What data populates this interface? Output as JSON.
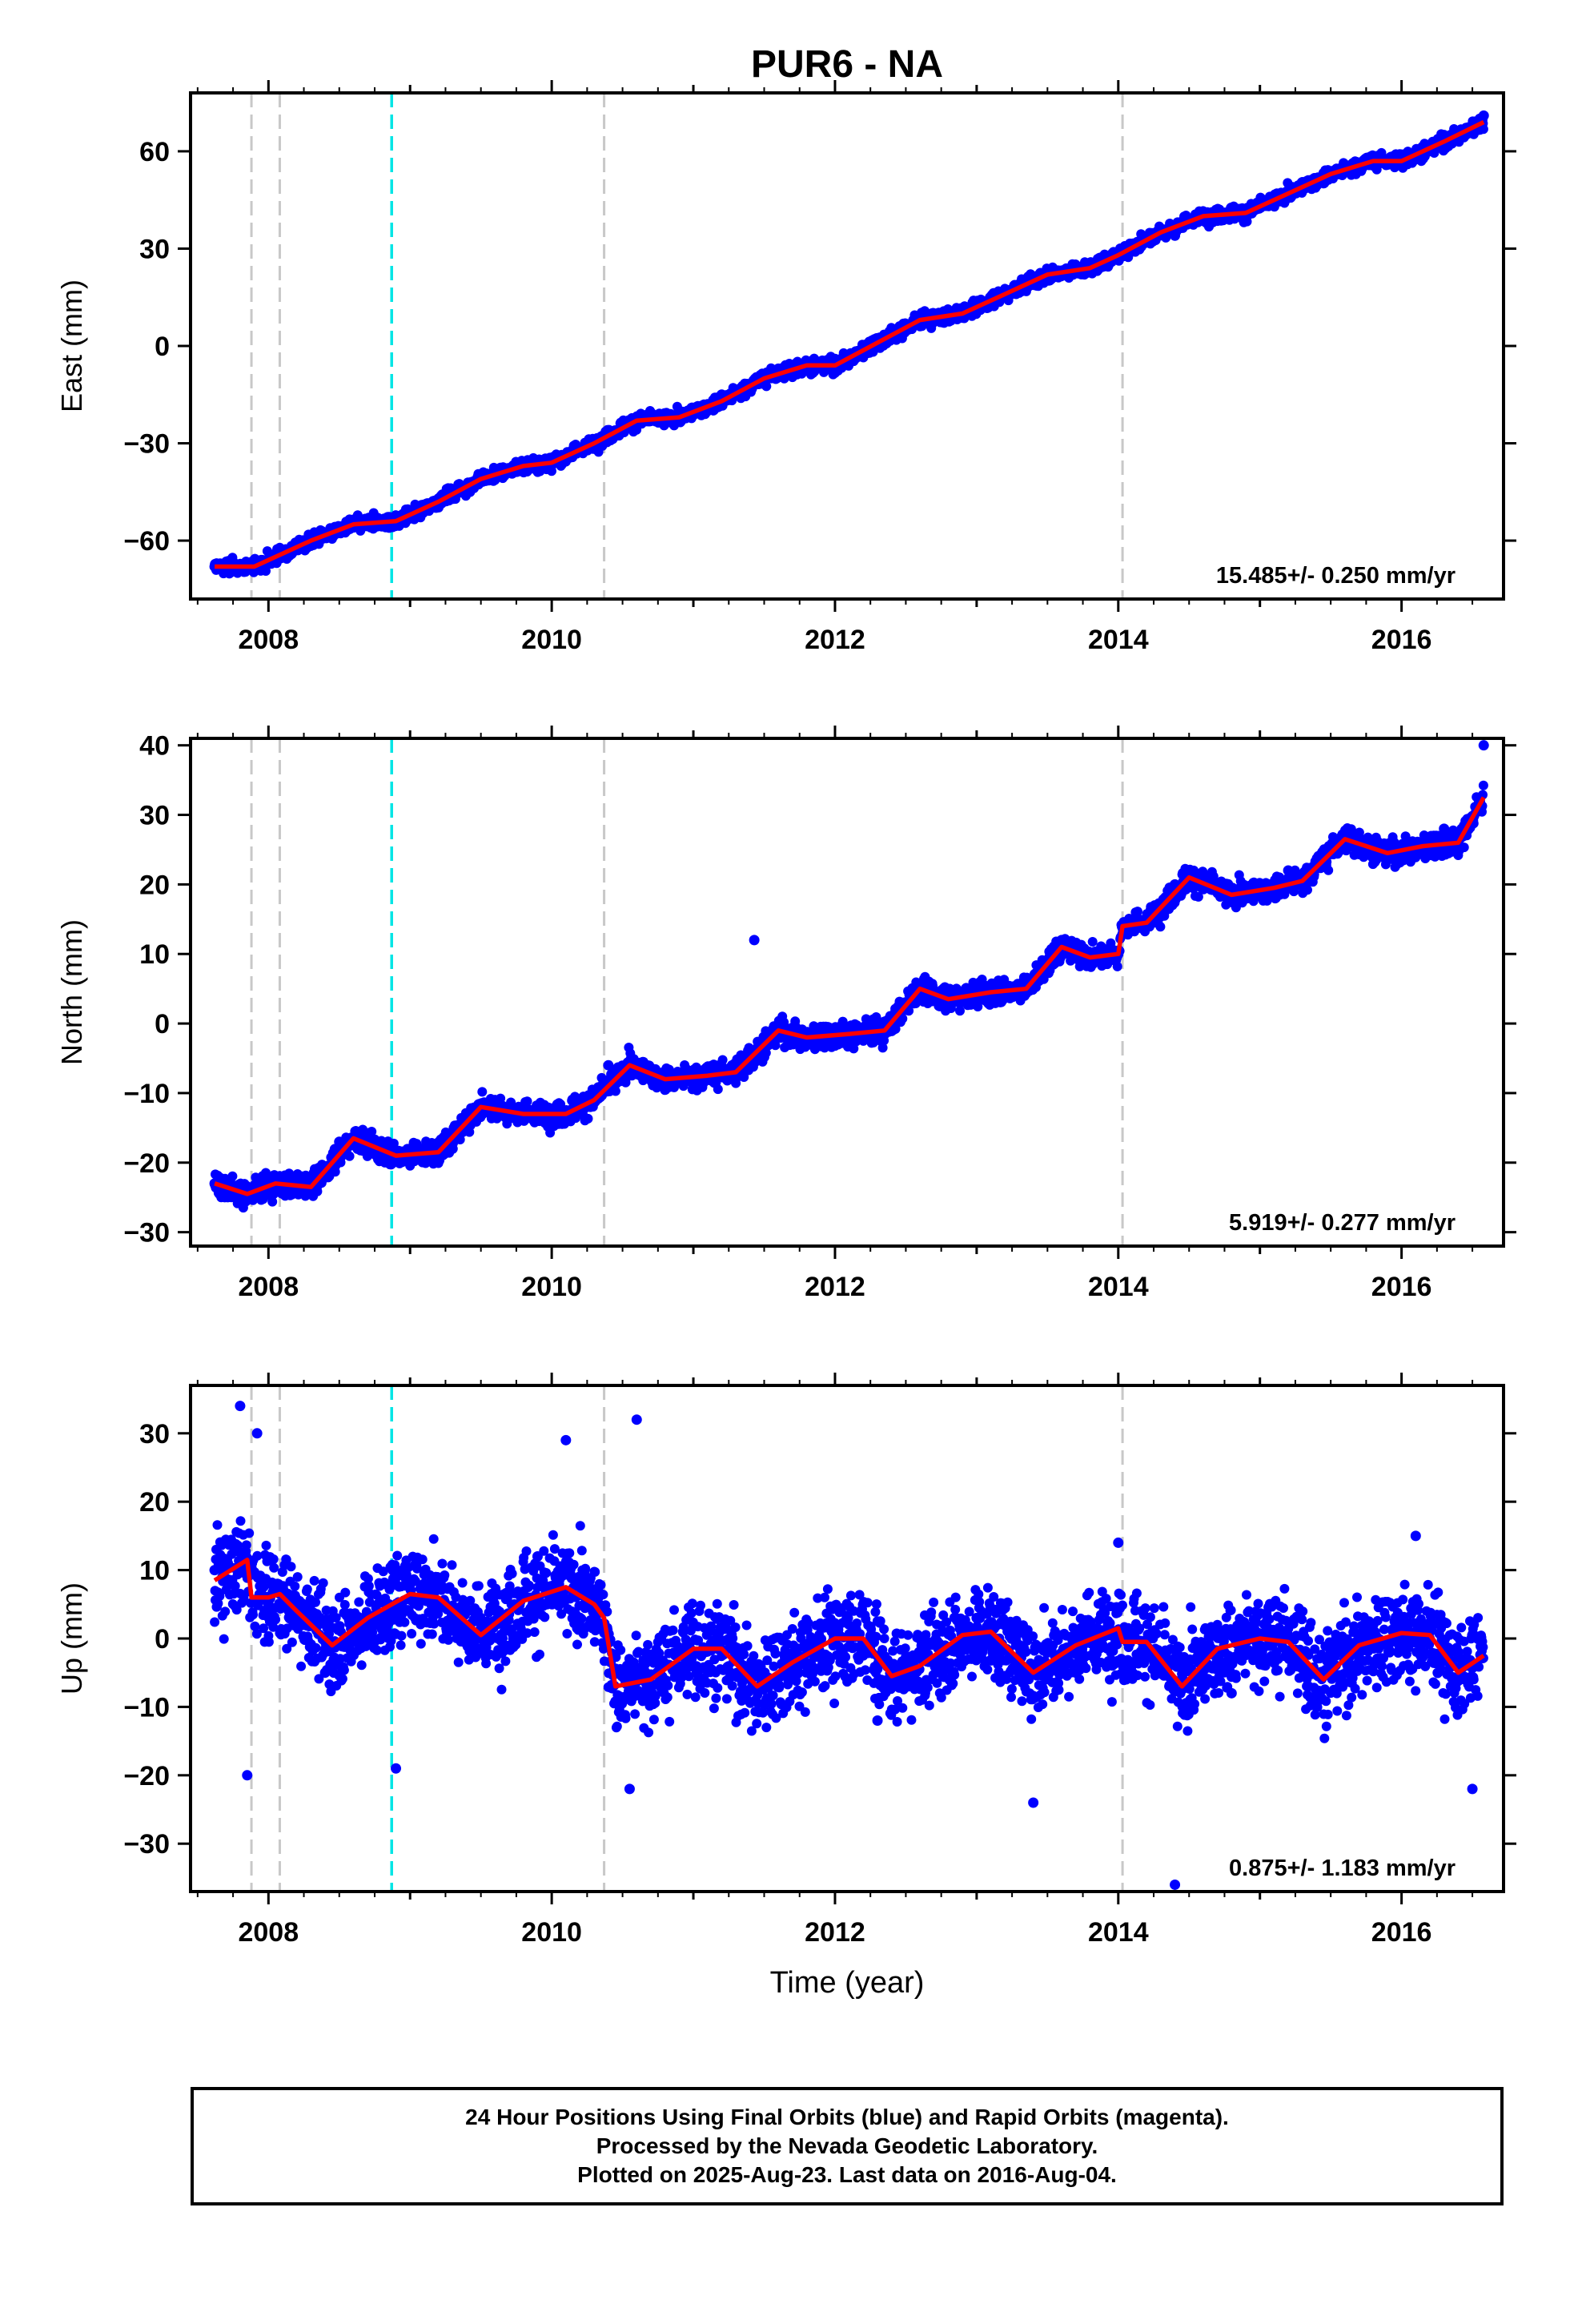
{
  "title": "PUR6 - NA",
  "x_axis_label": "Time (year)",
  "footer": {
    "line1": "24 Hour Positions Using Final Orbits (blue) and Rapid Orbits (magenta).",
    "line2": "Processed by the Nevada Geodetic Laboratory.",
    "line3": "Plotted on 2025-Aug-23. Last data on 2016-Aug-04."
  },
  "colors": {
    "final_orbits": "#0000ff",
    "model": "#ff0000",
    "equipment_change": "#c8c8c8",
    "event_line": "#00e5e5",
    "axes": "#000000"
  },
  "chart_data": [
    {
      "type": "scatter",
      "component": "east",
      "ylabel": "East (mm)",
      "ylim": [
        -78,
        78
      ],
      "yticks": [
        -60,
        -30,
        0,
        30,
        60
      ],
      "xlim": [
        2007.45,
        2016.72
      ],
      "xticks": [
        2008,
        2010,
        2012,
        2014,
        2016
      ],
      "rate_label": "15.485+/- 0.250 mm/yr",
      "grid": false,
      "vlines_gray": [
        2007.88,
        2008.08,
        2010.37,
        2014.03
      ],
      "vlines_cyan": [
        2008.87
      ],
      "series": [
        {
          "role": "daily positions",
          "x": [
            2007.62,
            2007.9,
            2008.2,
            2008.5,
            2008.9,
            2009.3,
            2009.7,
            2010.0,
            2010.4,
            2010.8,
            2011.2,
            2011.6,
            2012.0,
            2012.4,
            2012.8,
            2013.2,
            2013.6,
            2014.0,
            2014.4,
            2014.8,
            2015.2,
            2015.6,
            2016.0,
            2016.3,
            2016.58
          ],
          "y": [
            -68,
            -66,
            -62,
            -56,
            -53,
            -45,
            -39,
            -35,
            -26,
            -21,
            -15,
            -7,
            -4,
            3,
            10,
            15,
            23,
            27,
            34,
            40,
            47,
            55,
            59,
            65,
            71
          ]
        },
        {
          "role": "model fit",
          "x": [
            2007.62,
            2007.9,
            2008.0,
            2008.3,
            2008.6,
            2008.9,
            2009.2,
            2009.5,
            2009.8,
            2010.0,
            2010.3,
            2010.6,
            2010.9,
            2011.2,
            2011.5,
            2011.8,
            2012.0,
            2012.3,
            2012.6,
            2012.9,
            2013.2,
            2013.5,
            2013.8,
            2014.0,
            2014.3,
            2014.6,
            2014.9,
            2015.2,
            2015.5,
            2015.8,
            2016.0,
            2016.3,
            2016.58
          ],
          "y": [
            -68,
            -68,
            -66,
            -60,
            -55,
            -54,
            -48,
            -41,
            -37,
            -36,
            -30,
            -23,
            -22,
            -17,
            -10,
            -6,
            -6,
            1,
            8,
            10,
            16,
            22,
            24,
            28,
            35,
            40,
            41,
            47,
            53,
            57,
            57,
            63,
            69
          ]
        }
      ]
    },
    {
      "type": "scatter",
      "component": "north",
      "ylabel": "North (mm)",
      "ylim": [
        -32,
        41
      ],
      "yticks": [
        -30,
        -20,
        -10,
        0,
        10,
        20,
        30,
        40
      ],
      "xlim": [
        2007.45,
        2016.72
      ],
      "xticks": [
        2008,
        2010,
        2012,
        2014,
        2016
      ],
      "rate_label": "5.919+/- 0.277 mm/yr",
      "grid": false,
      "vlines_gray": [
        2007.88,
        2008.08,
        2010.37,
        2014.03
      ],
      "vlines_cyan": [
        2008.87
      ],
      "series": [
        {
          "role": "daily positions",
          "x": [
            2007.62,
            2007.9,
            2008.2,
            2008.5,
            2008.9,
            2009.3,
            2009.6,
            2010.0,
            2010.4,
            2010.8,
            2011.2,
            2011.43,
            2011.6,
            2012.0,
            2012.4,
            2012.8,
            2013.2,
            2013.6,
            2014.0,
            2014.4,
            2014.8,
            2015.2,
            2015.6,
            2016.0,
            2016.3,
            2016.58
          ],
          "y": [
            -23,
            -24,
            -24,
            -17,
            -19,
            -18,
            -11,
            -13,
            -6,
            -9,
            -7,
            12,
            -1,
            -2,
            0,
            4,
            5,
            12,
            10,
            20,
            19,
            22,
            26,
            25,
            28,
            40
          ]
        },
        {
          "role": "model fit",
          "x": [
            2007.62,
            2007.85,
            2008.05,
            2008.3,
            2008.6,
            2008.9,
            2009.2,
            2009.5,
            2009.8,
            2010.1,
            2010.3,
            2010.55,
            2010.8,
            2011.1,
            2011.3,
            2011.6,
            2011.8,
            2012.1,
            2012.35,
            2012.6,
            2012.8,
            2013.1,
            2013.35,
            2013.6,
            2013.8,
            2014.0,
            2014.03,
            2014.2,
            2014.5,
            2014.8,
            2015.1,
            2015.3,
            2015.6,
            2015.9,
            2016.15,
            2016.4,
            2016.58
          ],
          "y": [
            -23,
            -24.5,
            -23,
            -23.5,
            -16.5,
            -19,
            -18.5,
            -12,
            -13,
            -13,
            -11,
            -6,
            -8,
            -7.5,
            -7,
            -1,
            -2,
            -1.5,
            -1,
            5,
            3.5,
            4.5,
            5,
            11,
            9.5,
            10,
            14,
            14.5,
            21,
            18.5,
            19.5,
            20.5,
            26.5,
            24.5,
            25.5,
            26,
            32.5
          ]
        }
      ]
    },
    {
      "type": "scatter",
      "component": "up",
      "ylabel": "Up (mm)",
      "ylim": [
        -37,
        37
      ],
      "yticks": [
        -30,
        -20,
        -10,
        0,
        10,
        20,
        30
      ],
      "xlim": [
        2007.45,
        2016.72
      ],
      "xticks": [
        2008,
        2010,
        2012,
        2014,
        2016
      ],
      "rate_label": "0.875+/- 1.183 mm/yr",
      "grid": false,
      "vlines_gray": [
        2007.88,
        2008.08,
        2010.37,
        2014.03
      ],
      "vlines_cyan": [
        2008.87
      ],
      "series": [
        {
          "role": "daily positions",
          "x": [
            2007.62,
            2007.8,
            2007.85,
            2007.92,
            2008.0,
            2008.4,
            2008.9,
            2009.1,
            2009.5,
            2009.9,
            2010.1,
            2010.3,
            2010.55,
            2010.6,
            2011.0,
            2011.5,
            2012.0,
            2012.3,
            2012.5,
            2013.0,
            2013.4,
            2013.7,
            2014.0,
            2014.4,
            2014.8,
            2015.1,
            2015.4,
            2015.8,
            2016.1,
            2016.5
          ],
          "y": [
            10,
            34,
            -20,
            30,
            5,
            -5,
            -19,
            8,
            -2,
            12,
            29,
            5,
            -22,
            32,
            2,
            -5,
            2,
            -12,
            -3,
            3,
            -24,
            -5,
            14,
            -36,
            -8,
            5,
            -10,
            2,
            15,
            -22
          ]
        },
        {
          "role": "model fit",
          "x": [
            2007.62,
            2007.85,
            2007.88,
            2008.0,
            2008.08,
            2008.2,
            2008.45,
            2008.7,
            2009.0,
            2009.2,
            2009.5,
            2009.8,
            2010.1,
            2010.3,
            2010.37,
            2010.45,
            2010.7,
            2011.0,
            2011.2,
            2011.45,
            2011.7,
            2012.0,
            2012.2,
            2012.4,
            2012.6,
            2012.9,
            2013.1,
            2013.4,
            2013.7,
            2014.0,
            2014.03,
            2014.2,
            2014.45,
            2014.7,
            2015.0,
            2015.2,
            2015.45,
            2015.7,
            2016.0,
            2016.2,
            2016.4,
            2016.58
          ],
          "y": [
            8.5,
            11.5,
            6,
            6,
            6.5,
            4,
            -1,
            3,
            6.5,
            6,
            0.5,
            5.5,
            7.5,
            5,
            3,
            -7,
            -6,
            -1.5,
            -1.5,
            -7,
            -3.5,
            0,
            0,
            -5.5,
            -4,
            0.5,
            1,
            -5,
            -1,
            1.5,
            -0.5,
            -0.5,
            -7,
            -1.5,
            0,
            -0.5,
            -6,
            -1,
            0.8,
            0.5,
            -5,
            -2.5
          ]
        }
      ]
    }
  ]
}
